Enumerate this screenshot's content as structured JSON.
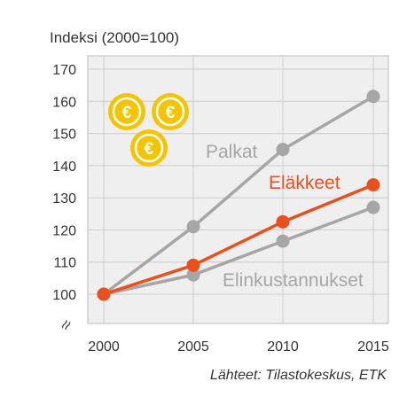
{
  "chart_data": {
    "type": "line",
    "title": "",
    "ylabel": "Indeksi (2000=100)",
    "xlabel": "",
    "x": [
      2000,
      2005,
      2010,
      2015
    ],
    "xticks": [
      "2000",
      "2005",
      "2010",
      "2015"
    ],
    "ylim": [
      100,
      170
    ],
    "yticks": [
      "100",
      "110",
      "120",
      "130",
      "140",
      "150",
      "160",
      "170"
    ],
    "axis_break": true,
    "grid": true,
    "series": [
      {
        "name": "Palkat",
        "values": [
          100,
          121,
          145,
          161.5
        ],
        "color": "#a6a6a6"
      },
      {
        "name": "Eläkkeet",
        "values": [
          100,
          109,
          122.5,
          134
        ],
        "color": "#e8501d"
      },
      {
        "name": "Elinkustannukset",
        "values": [
          100,
          106,
          116.5,
          127
        ],
        "color": "#a6a6a6"
      }
    ],
    "break_symbol": "≈",
    "source": "Lähteet: Tilastokeskus, ETK",
    "decoration": {
      "icon": "euro-coin-icon",
      "count": 3,
      "symbol": "€",
      "color": "#f5c400"
    }
  }
}
